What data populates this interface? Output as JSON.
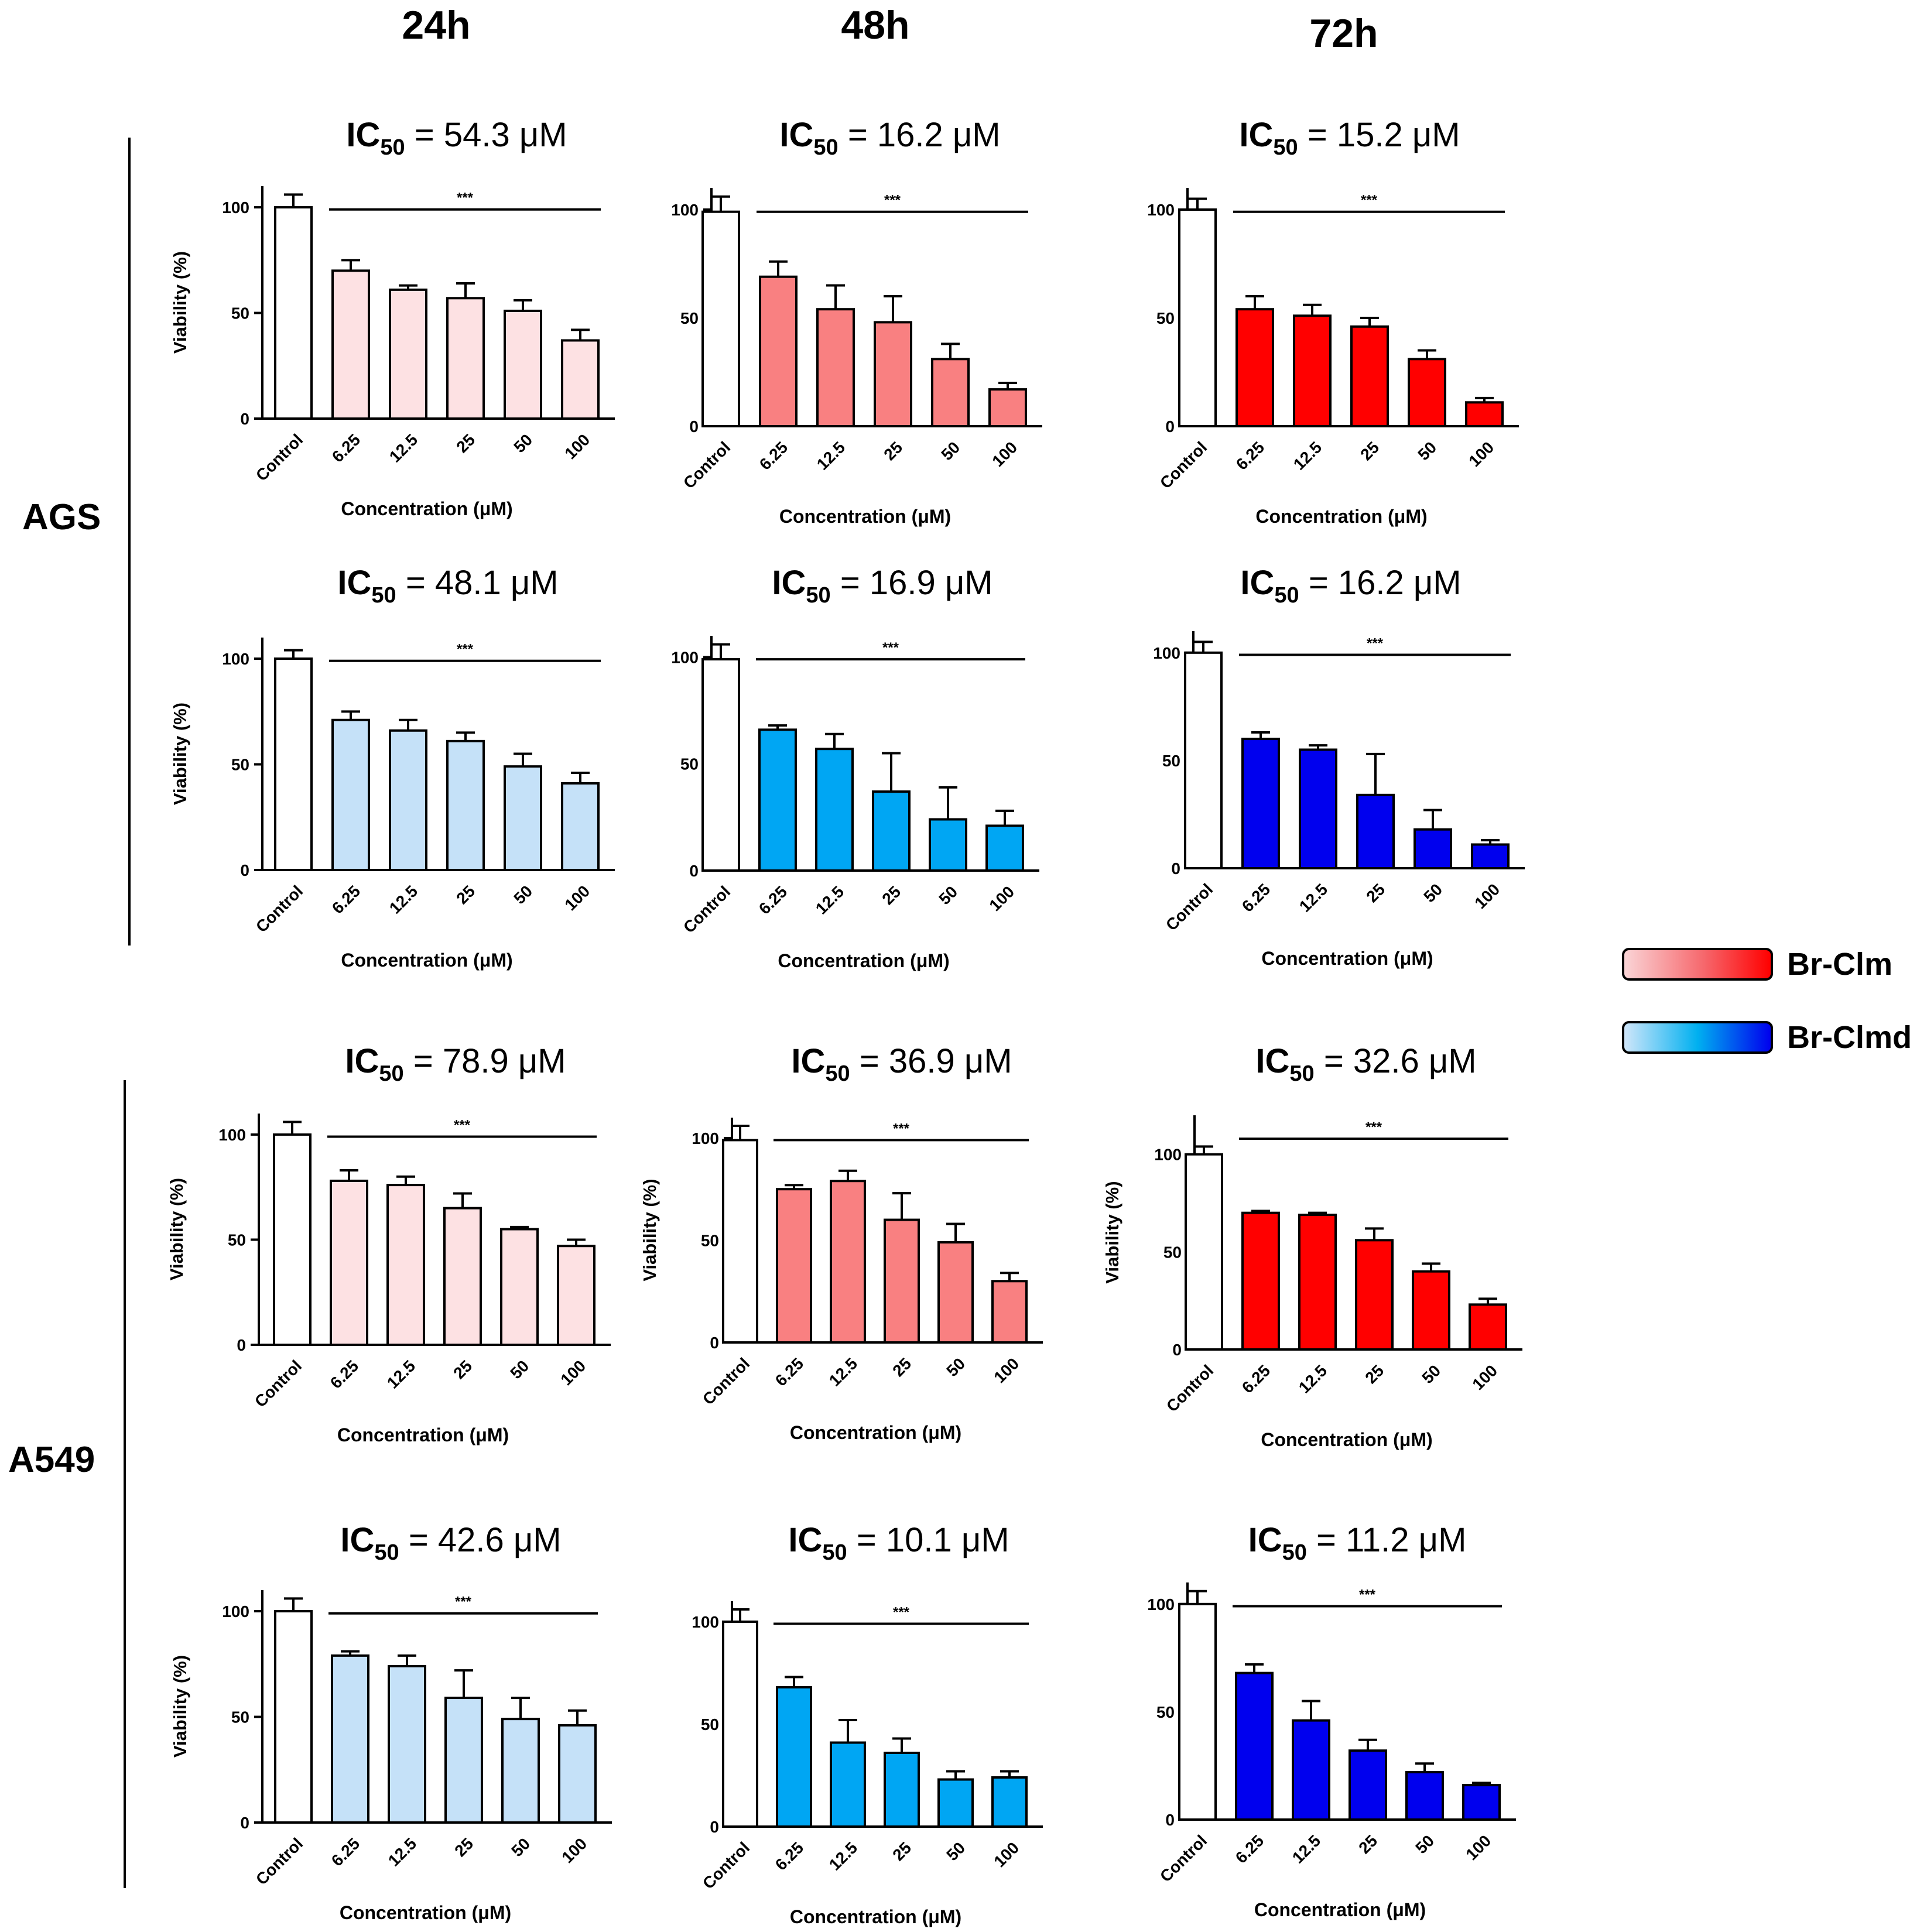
{
  "figure": {
    "time_headers": [
      "24h",
      "48h",
      "72h"
    ],
    "cell_lines": [
      "AGS",
      "A549"
    ],
    "legend": [
      {
        "label": "Br-Clm",
        "gradient": [
          "#FAD4D6",
          "#F6666B",
          "#FF0000"
        ]
      },
      {
        "label": "Br-Clmd",
        "gradient": [
          "#CFE6FA",
          "#00B0F0",
          "#0000EE"
        ]
      }
    ]
  },
  "chart_data": [
    {
      "type": "bar",
      "cell_line": "AGS",
      "compound": "Br-Clm",
      "time": "24h",
      "ic50_value": "54.3",
      "categories": [
        "Control",
        "6.25",
        "12.5",
        "25",
        "50",
        "100"
      ],
      "values": [
        100,
        70,
        61,
        57,
        51,
        37
      ],
      "errors": [
        6,
        5,
        2,
        7,
        5,
        5
      ],
      "xlabel": "Concentration (μM)",
      "ylabel": "Viability (%)",
      "ylim": [
        0,
        110
      ],
      "yticks": [
        0,
        50,
        100
      ],
      "significance": "***",
      "bar_color": "#FDE1E3"
    },
    {
      "type": "bar",
      "cell_line": "AGS",
      "compound": "Br-Clm",
      "time": "48h",
      "ic50_value": "16.2",
      "categories": [
        "Control",
        "6.25",
        "12.5",
        "25",
        "50",
        "100"
      ],
      "values": [
        99,
        69,
        54,
        48,
        31,
        17
      ],
      "errors": [
        7,
        7,
        11,
        12,
        7,
        3
      ],
      "xlabel": "Concentration (μM)",
      "ylabel": "",
      "ylim": [
        0,
        110
      ],
      "yticks": [
        0,
        50,
        100
      ],
      "significance": "***",
      "bar_color": "#F98081"
    },
    {
      "type": "bar",
      "cell_line": "AGS",
      "compound": "Br-Clm",
      "time": "72h",
      "ic50_value": "15.2",
      "categories": [
        "Control",
        "6.25",
        "12.5",
        "25",
        "50",
        "100"
      ],
      "values": [
        100,
        54,
        51,
        46,
        31,
        11
      ],
      "errors": [
        5,
        6,
        5,
        4,
        4,
        2
      ],
      "xlabel": "Concentration (μM)",
      "ylabel": "",
      "ylim": [
        0,
        110
      ],
      "yticks": [
        0,
        50,
        100
      ],
      "significance": "***",
      "bar_color": "#FF0000"
    },
    {
      "type": "bar",
      "cell_line": "AGS",
      "compound": "Br-Clmd",
      "time": "24h",
      "ic50_value": "48.1",
      "categories": [
        "Control",
        "6.25",
        "12.5",
        "25",
        "50",
        "100"
      ],
      "values": [
        100,
        71,
        66,
        61,
        49,
        41
      ],
      "errors": [
        4,
        4,
        5,
        4,
        6,
        5
      ],
      "xlabel": "Concentration (μM)",
      "ylabel": "Viability (%)",
      "ylim": [
        0,
        110
      ],
      "yticks": [
        0,
        50,
        100
      ],
      "significance": "***",
      "bar_color": "#C5E1F8"
    },
    {
      "type": "bar",
      "cell_line": "AGS",
      "compound": "Br-Clmd",
      "time": "48h",
      "ic50_value": "16.9",
      "categories": [
        "Control",
        "6.25",
        "12.5",
        "25",
        "50",
        "100"
      ],
      "values": [
        99,
        66,
        57,
        37,
        24,
        21
      ],
      "errors": [
        7,
        2,
        7,
        18,
        15,
        7
      ],
      "xlabel": "Concentration (μM)",
      "ylabel": "",
      "ylim": [
        0,
        110
      ],
      "yticks": [
        0,
        50,
        100
      ],
      "significance": "***",
      "bar_color": "#00A6F3"
    },
    {
      "type": "bar",
      "cell_line": "AGS",
      "compound": "Br-Clmd",
      "time": "72h",
      "ic50_value": "16.2",
      "categories": [
        "Control",
        "6.25",
        "12.5",
        "25",
        "50",
        "100"
      ],
      "values": [
        100,
        60,
        55,
        34,
        18,
        11
      ],
      "errors": [
        5,
        3,
        2,
        19,
        9,
        2
      ],
      "xlabel": "Concentration (μM)",
      "ylabel": "",
      "ylim": [
        0,
        110
      ],
      "yticks": [
        0,
        50,
        100
      ],
      "significance": "***",
      "bar_color": "#0000EE"
    },
    {
      "type": "bar",
      "cell_line": "A549",
      "compound": "Br-Clm",
      "time": "24h",
      "ic50_value": "78.9",
      "categories": [
        "Control",
        "6.25",
        "12.5",
        "25",
        "50",
        "100"
      ],
      "values": [
        100,
        78,
        76,
        65,
        55,
        47
      ],
      "errors": [
        6,
        5,
        4,
        7,
        1,
        3
      ],
      "xlabel": "Concentration (μM)",
      "ylabel": "Viability (%)",
      "ylim": [
        0,
        110
      ],
      "yticks": [
        0,
        50,
        100
      ],
      "significance": "***",
      "bar_color": "#FDE1E3"
    },
    {
      "type": "bar",
      "cell_line": "A549",
      "compound": "Br-Clm",
      "time": "48h",
      "ic50_value": "36.9",
      "categories": [
        "Control",
        "6.25",
        "12.5",
        "25",
        "50",
        "100"
      ],
      "values": [
        99,
        75,
        79,
        60,
        49,
        30
      ],
      "errors": [
        7,
        2,
        5,
        13,
        9,
        4
      ],
      "xlabel": "Concentration (μM)",
      "ylabel": "Viability (%)",
      "ylim": [
        0,
        110
      ],
      "yticks": [
        0,
        50,
        100
      ],
      "significance": "***",
      "bar_color": "#F98081"
    },
    {
      "type": "bar",
      "cell_line": "A549",
      "compound": "Br-Clm",
      "time": "72h",
      "ic50_value": "32.6",
      "categories": [
        "Control",
        "6.25",
        "12.5",
        "25",
        "50",
        "100"
      ],
      "values": [
        100,
        70,
        69,
        56,
        40,
        23
      ],
      "errors": [
        4,
        1,
        1,
        6,
        4,
        3
      ],
      "xlabel": "Concentration (μM)",
      "ylabel": "Viability (%)",
      "ylim": [
        0,
        120
      ],
      "yticks": [
        0,
        50,
        100
      ],
      "significance": "***",
      "bar_color": "#FF0000"
    },
    {
      "type": "bar",
      "cell_line": "A549",
      "compound": "Br-Clmd",
      "time": "24h",
      "ic50_value": "42.6",
      "categories": [
        "Control",
        "6.25",
        "12.5",
        "25",
        "50",
        "100"
      ],
      "values": [
        100,
        79,
        74,
        59,
        49,
        46
      ],
      "errors": [
        6,
        2,
        5,
        13,
        10,
        7
      ],
      "xlabel": "Concentration (μM)",
      "ylabel": "Viability (%)",
      "ylim": [
        0,
        110
      ],
      "yticks": [
        0,
        50,
        100
      ],
      "significance": "***",
      "bar_color": "#C5E1F8"
    },
    {
      "type": "bar",
      "cell_line": "A549",
      "compound": "Br-Clmd",
      "time": "48h",
      "ic50_value": "10.1",
      "categories": [
        "Control",
        "6.25",
        "12.5",
        "25",
        "50",
        "100"
      ],
      "values": [
        100,
        68,
        41,
        36,
        23,
        24
      ],
      "errors": [
        6,
        5,
        11,
        7,
        4,
        3
      ],
      "xlabel": "Concentration (μM)",
      "ylabel": "",
      "ylim": [
        0,
        110
      ],
      "yticks": [
        0,
        50,
        100
      ],
      "significance": "***",
      "bar_color": "#00A6F3"
    },
    {
      "type": "bar",
      "cell_line": "A549",
      "compound": "Br-Clmd",
      "time": "72h",
      "ic50_value": "11.2",
      "categories": [
        "Control",
        "6.25",
        "12.5",
        "25",
        "50",
        "100"
      ],
      "values": [
        100,
        68,
        46,
        32,
        22,
        16
      ],
      "errors": [
        6,
        4,
        9,
        5,
        4,
        1
      ],
      "xlabel": "Concentration (μM)",
      "ylabel": "",
      "ylim": [
        0,
        110
      ],
      "yticks": [
        0,
        50,
        100
      ],
      "significance": "***",
      "bar_color": "#0000EE"
    }
  ]
}
